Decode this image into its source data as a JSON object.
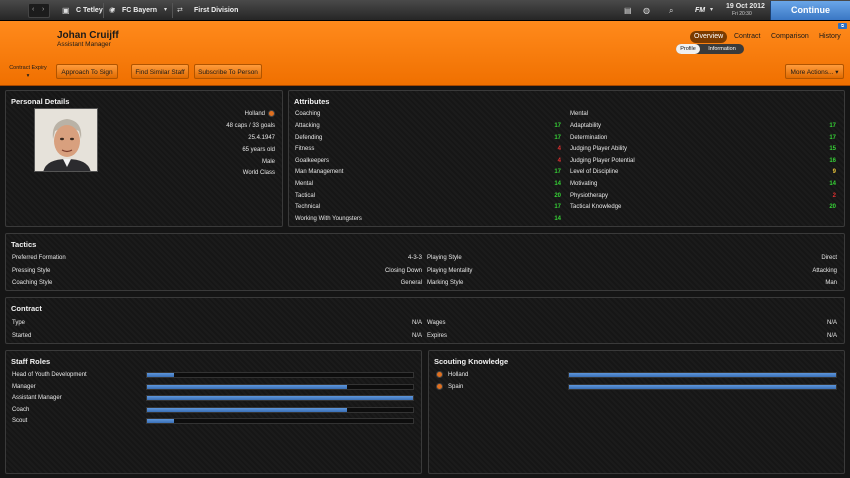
{
  "topbar": {
    "crumbs": [
      {
        "icon": "shirt-icon",
        "label": "C Tetley"
      },
      {
        "icon": "club-badge-icon",
        "label": "FC Bayern"
      },
      {
        "icon": "competition-icon",
        "label": "First Division"
      }
    ],
    "fm_label": "FM",
    "date_main": "19 Oct 2012",
    "date_sub": "Fri 20:30",
    "continue_label": "Continue"
  },
  "person": {
    "name": "Johan Cruijff",
    "role": "Assistant Manager"
  },
  "tabs": [
    "Overview",
    "Contract",
    "Comparison",
    "History"
  ],
  "subtabs": [
    "Profile",
    "Information"
  ],
  "actions": {
    "contract_expiry": "Contract Expiry",
    "approach": "Approach To Sign",
    "find_similar": "Find Similar Staff",
    "subscribe": "Subscribe To Person",
    "more": "More Actions..."
  },
  "personal": {
    "title": "Personal Details",
    "nationality": "Holland",
    "caps": "48 caps / 33 goals",
    "dob": "25.4.1947",
    "age": "65 years old",
    "gender": "Male",
    "reputation": "World Class"
  },
  "attributes": {
    "title": "Attributes",
    "coaching_header": "Coaching",
    "mental_header": "Mental",
    "coaching": [
      {
        "label": "Attacking",
        "value": 17
      },
      {
        "label": "Defending",
        "value": 17
      },
      {
        "label": "Fitness",
        "value": 4
      },
      {
        "label": "Goalkeepers",
        "value": 4
      },
      {
        "label": "Man Management",
        "value": 17
      },
      {
        "label": "Mental",
        "value": 14
      },
      {
        "label": "Tactical",
        "value": 20
      },
      {
        "label": "Technical",
        "value": 17
      },
      {
        "label": "Working With Youngsters",
        "value": 14
      }
    ],
    "mental": [
      {
        "label": "Adaptability",
        "value": 17
      },
      {
        "label": "Determination",
        "value": 17
      },
      {
        "label": "Judging Player Ability",
        "value": 15
      },
      {
        "label": "Judging Player Potential",
        "value": 16
      },
      {
        "label": "Level of Discipline",
        "value": 9
      },
      {
        "label": "Motivating",
        "value": 14
      },
      {
        "label": "Physiotherapy",
        "value": 2
      },
      {
        "label": "Tactical Knowledge",
        "value": 20
      }
    ]
  },
  "tactics": {
    "title": "Tactics",
    "left": [
      {
        "label": "Preferred Formation",
        "value": "4-3-3"
      },
      {
        "label": "Pressing Style",
        "value": "Closing Down"
      },
      {
        "label": "Coaching Style",
        "value": "General"
      }
    ],
    "right": [
      {
        "label": "Playing Style",
        "value": "Direct"
      },
      {
        "label": "Playing Mentality",
        "value": "Attacking"
      },
      {
        "label": "Marking Style",
        "value": "Man"
      }
    ]
  },
  "contract": {
    "title": "Contract",
    "left": [
      {
        "label": "Type",
        "value": "N/A"
      },
      {
        "label": "Started",
        "value": "N/A"
      }
    ],
    "right": [
      {
        "label": "Wages",
        "value": "N/A"
      },
      {
        "label": "Expires",
        "value": "N/A"
      }
    ]
  },
  "staff_roles": {
    "title": "Staff Roles",
    "items": [
      {
        "label": "Head of Youth Development",
        "level": 0.1
      },
      {
        "label": "Manager",
        "level": 0.75
      },
      {
        "label": "Assistant Manager",
        "level": 1.0
      },
      {
        "label": "Coach",
        "level": 0.75
      },
      {
        "label": "Scout",
        "level": 0.1
      }
    ]
  },
  "scouting": {
    "title": "Scouting Knowledge",
    "items": [
      {
        "label": "Holland",
        "level": 1.0
      },
      {
        "label": "Spain",
        "level": 1.0
      }
    ]
  },
  "colors": {
    "orange": "#f07000",
    "continue_blue": "#4a86d4",
    "good": "#36d236",
    "mid": "#e8c23a",
    "bad": "#e03030"
  }
}
